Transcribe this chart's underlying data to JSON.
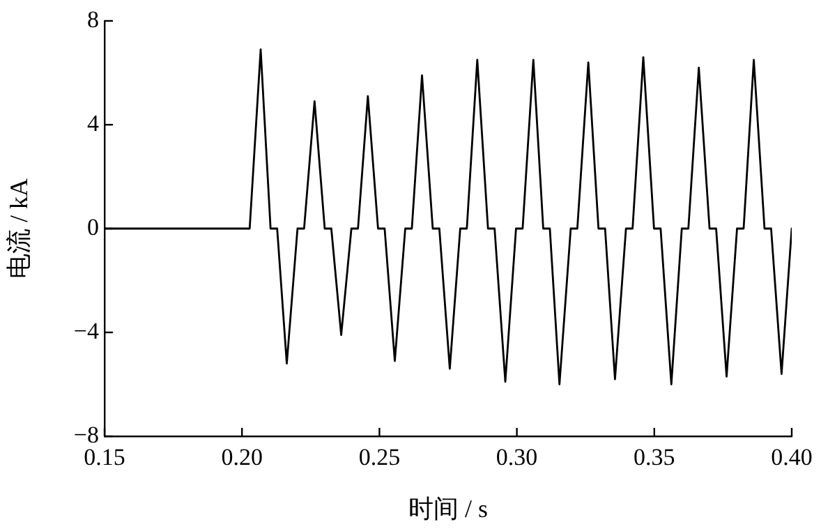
{
  "chart_data": {
    "type": "line",
    "xlabel": "时间 / s",
    "ylabel": "电流 / kA",
    "xlim": [
      0.15,
      0.4
    ],
    "xticks": [
      0.15,
      {
        "value": 0.2,
        "label": "0.20"
      },
      0.25,
      {
        "value": 0.3,
        "label": "0.30"
      },
      0.35,
      {
        "value": 0.4,
        "label": "0.40"
      }
    ],
    "ylim": [
      -8,
      8
    ],
    "yticks": [
      {
        "value": -8,
        "label": "−8"
      },
      {
        "value": -4,
        "label": "−4"
      },
      0,
      4,
      8
    ],
    "grid": false,
    "legend": false,
    "marker": "none",
    "line_style": "solid",
    "series": [
      {
        "color": "#000000",
        "x": [
          0.15,
          0.2028,
          0.2068,
          0.2104,
          0.2128,
          0.2163,
          0.2202,
          0.2226,
          0.2264,
          0.2301,
          0.2325,
          0.2361,
          0.2398,
          0.2422,
          0.2458,
          0.2495,
          0.2519,
          0.2556,
          0.2594,
          0.2618,
          0.2655,
          0.2694,
          0.2718,
          0.2756,
          0.2794,
          0.2818,
          0.2856,
          0.2895,
          0.2919,
          0.2958,
          0.2997,
          0.3021,
          0.306,
          0.3096,
          0.312,
          0.3155,
          0.3196,
          0.322,
          0.326,
          0.3297,
          0.3321,
          0.3357,
          0.3397,
          0.3421,
          0.346,
          0.3499,
          0.3523,
          0.3562,
          0.36,
          0.3624,
          0.3662,
          0.3701,
          0.3725,
          0.3763,
          0.3801,
          0.3825,
          0.3862,
          0.3901,
          0.3925,
          0.3963,
          0.4
        ],
        "values": [
          0,
          0,
          6.9,
          0,
          0,
          -5.2,
          0,
          0,
          4.9,
          0,
          0,
          -4.1,
          0,
          0,
          5.1,
          0,
          0,
          -5.1,
          0,
          0,
          5.9,
          0,
          0,
          -5.4,
          0,
          0,
          6.5,
          0,
          0,
          -5.9,
          0,
          0,
          6.5,
          0,
          0,
          -6.0,
          0,
          0,
          6.4,
          0,
          0,
          -5.8,
          0,
          0,
          6.6,
          0,
          0,
          -6.0,
          0,
          0,
          6.2,
          0,
          0,
          -5.7,
          0,
          0,
          6.5,
          0,
          0,
          -5.6,
          0
        ]
      }
    ]
  }
}
